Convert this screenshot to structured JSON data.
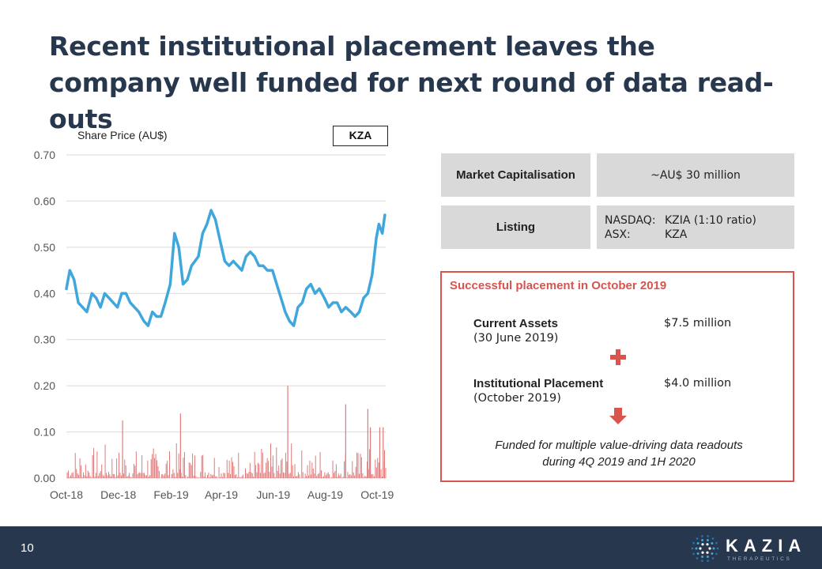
{
  "title": "Recent institutional placement leaves the company well funded for next round of data read-outs",
  "chart_data": {
    "type": "line",
    "title": "",
    "ylabel": "Share Price (AU$)",
    "ticker": "KZA",
    "ylim": [
      0,
      0.7
    ],
    "yticks": [
      "0.70",
      "0.60",
      "0.50",
      "0.40",
      "0.30",
      "0.20",
      "0.10",
      "0.00"
    ],
    "yticks_values": [
      0.7,
      0.6,
      0.5,
      0.4,
      0.3,
      0.2,
      0.1,
      0.0
    ],
    "xticks": [
      "Oct-18",
      "Dec-18",
      "Feb-19",
      "Apr-19",
      "Jun-19",
      "Aug-19",
      "Oct-19"
    ],
    "xticks_values": [
      "2018-10-01",
      "2018-12-01",
      "2019-02-01",
      "2019-04-01",
      "2019-06-01",
      "2019-08-01",
      "2019-10-01"
    ],
    "xlim": [
      "2018-10-01",
      "2019-10-11"
    ],
    "grid": true,
    "series": [
      {
        "kind": "line",
        "color": "#3fa7dc",
        "x": [
          "2018-10-01",
          "2018-10-05",
          "2018-10-10",
          "2018-10-15",
          "2018-10-20",
          "2018-10-25",
          "2018-10-31",
          "2018-11-05",
          "2018-11-10",
          "2018-11-15",
          "2018-11-20",
          "2018-11-25",
          "2018-11-30",
          "2018-12-05",
          "2018-12-10",
          "2018-12-15",
          "2018-12-20",
          "2018-12-25",
          "2018-12-31",
          "2019-01-05",
          "2019-01-10",
          "2019-01-15",
          "2019-01-20",
          "2019-01-25",
          "2019-01-31",
          "2019-02-05",
          "2019-02-10",
          "2019-02-15",
          "2019-02-20",
          "2019-02-25",
          "2019-03-01",
          "2019-03-05",
          "2019-03-10",
          "2019-03-15",
          "2019-03-20",
          "2019-03-25",
          "2019-03-31",
          "2019-04-05",
          "2019-04-10",
          "2019-04-15",
          "2019-04-20",
          "2019-04-25",
          "2019-04-30",
          "2019-05-05",
          "2019-05-10",
          "2019-05-15",
          "2019-05-20",
          "2019-05-25",
          "2019-05-31",
          "2019-06-05",
          "2019-06-10",
          "2019-06-15",
          "2019-06-20",
          "2019-06-25",
          "2019-06-30",
          "2019-07-05",
          "2019-07-10",
          "2019-07-15",
          "2019-07-20",
          "2019-07-25",
          "2019-07-31",
          "2019-08-05",
          "2019-08-10",
          "2019-08-15",
          "2019-08-20",
          "2019-08-25",
          "2019-08-31",
          "2019-09-05",
          "2019-09-10",
          "2019-09-15",
          "2019-09-20",
          "2019-09-25",
          "2019-09-30",
          "2019-10-03",
          "2019-10-07",
          "2019-10-10"
        ],
        "y": [
          0.41,
          0.45,
          0.43,
          0.38,
          0.37,
          0.36,
          0.4,
          0.39,
          0.37,
          0.4,
          0.39,
          0.38,
          0.37,
          0.4,
          0.4,
          0.38,
          0.37,
          0.36,
          0.34,
          0.33,
          0.36,
          0.35,
          0.35,
          0.38,
          0.42,
          0.53,
          0.5,
          0.42,
          0.43,
          0.46,
          0.47,
          0.48,
          0.53,
          0.55,
          0.58,
          0.56,
          0.51,
          0.47,
          0.46,
          0.47,
          0.46,
          0.45,
          0.48,
          0.49,
          0.48,
          0.46,
          0.46,
          0.45,
          0.45,
          0.42,
          0.39,
          0.36,
          0.34,
          0.33,
          0.37,
          0.38,
          0.41,
          0.42,
          0.4,
          0.41,
          0.39,
          0.37,
          0.38,
          0.38,
          0.36,
          0.37,
          0.36,
          0.35,
          0.36,
          0.39,
          0.4,
          0.44,
          0.52,
          0.55,
          0.53,
          0.57
        ]
      },
      {
        "kind": "volume-bars",
        "color": "#e07a7a",
        "tall_bars": [
          [
            "2018-12-06",
            0.125
          ],
          [
            "2019-02-12",
            0.14
          ],
          [
            "2019-06-18",
            0.2
          ],
          [
            "2019-08-25",
            0.16
          ],
          [
            "2019-09-20",
            0.15
          ],
          [
            "2019-09-23",
            0.11
          ],
          [
            "2019-10-04",
            0.11
          ],
          [
            "2019-10-08",
            0.11
          ]
        ]
      }
    ]
  },
  "info_table": {
    "market_cap_label": "Market Capitalisation",
    "market_cap_value": "~AU$ 30 million",
    "listing_label": "Listing",
    "listing_rows": [
      {
        "exchange": "NASDAQ:",
        "code": "KZIA (1:10 ratio)"
      },
      {
        "exchange": "ASX:",
        "code": "KZA"
      }
    ]
  },
  "placement": {
    "title": "Successful placement in October 2019",
    "current_assets_label": "Current Assets",
    "current_assets_date": "(30 June 2019)",
    "current_assets_value": "$7.5 million",
    "placement_label": "Institutional Placement",
    "placement_date": "(October 2019)",
    "placement_value": "$4.0 million",
    "funded_line1": "Funded for multiple value-driving data readouts",
    "funded_line2": "during 4Q 2019 and 1H 2020",
    "accent_color": "#d9534f"
  },
  "footer": {
    "page_number": "10",
    "logo_text": "KAZIA",
    "logo_subtext": "THERAPEUTICS"
  }
}
